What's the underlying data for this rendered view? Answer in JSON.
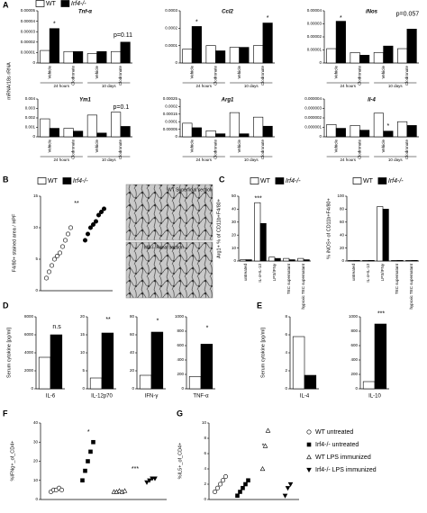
{
  "chart_data": [
    {
      "panel": "A",
      "type": "bar",
      "title": "Tnf-α",
      "y_label": "mRNA/18s rRNA",
      "legend": true,
      "categories": [
        "Vehicle",
        "Clodronate",
        "Vehicle",
        "Clodronate"
      ],
      "groups": [
        "24 hours",
        "10 days"
      ],
      "series": [
        {
          "name": "WT",
          "color": "#ffffff",
          "values": [
            1.2e-05,
            1.1e-05,
            9e-06,
            1.1e-05
          ]
        },
        {
          "name": "Irf4-/-",
          "color": "#000000",
          "values": [
            3.3e-05,
            1.1e-05,
            1.1e-05,
            2e-05
          ]
        }
      ],
      "ylim": [
        0,
        5e-05
      ],
      "yticks": [
        0,
        1e-05,
        2e-05,
        3e-05,
        4e-05,
        5e-05
      ],
      "annotations": [
        "*",
        "p=0.11"
      ]
    },
    {
      "type": "bar",
      "title": "Ccl2",
      "categories": [
        "Vehicle",
        "Clodronate",
        "Vehicle",
        "Clodronate"
      ],
      "groups": [
        "24 hours",
        "10 days"
      ],
      "series": [
        {
          "name": "WT",
          "color": "#ffffff",
          "values": [
            8e-05,
            0.0001,
            9e-05,
            0.0001
          ]
        },
        {
          "name": "Irf4-/-",
          "color": "#000000",
          "values": [
            0.00021,
            7e-05,
            9e-05,
            0.00023
          ]
        }
      ],
      "ylim": [
        0,
        0.0003
      ],
      "yticks": [
        0,
        0.0001,
        0.0002,
        0.0003
      ],
      "annotations": [
        "*",
        "*"
      ]
    },
    {
      "type": "bar",
      "title": "iNos",
      "categories": [
        "Vehicle",
        "Clodronate",
        "Vehicle",
        "Clodronate"
      ],
      "groups": [
        "24 hours",
        "10 days"
      ],
      "series": [
        {
          "name": "WT",
          "color": "#ffffff",
          "values": [
            1.1e-05,
            8e-06,
            8e-06,
            1.1e-05
          ]
        },
        {
          "name": "Irf4-/-",
          "color": "#000000",
          "values": [
            3.2e-05,
            6e-06,
            1.3e-05,
            2.6e-05
          ]
        }
      ],
      "ylim": [
        0,
        4e-05
      ],
      "yticks": [
        0,
        1e-05,
        2e-05,
        3e-05,
        4e-05
      ],
      "annotations": [
        "*",
        "p=0.057"
      ]
    },
    {
      "type": "bar",
      "title": "Ym1",
      "categories": [
        "Vehicle",
        "Clodronate",
        "Vehicle",
        "Clodronate"
      ],
      "groups": [
        "24 hours",
        "10 days"
      ],
      "series": [
        {
          "name": "WT",
          "color": "#ffffff",
          "values": [
            0.0019,
            0.0009,
            0.0023,
            0.0026
          ]
        },
        {
          "name": "Irf4-/-",
          "color": "#000000",
          "values": [
            0.0009,
            0.0006,
            0.0004,
            0.0011
          ]
        }
      ],
      "ylim": [
        0,
        0.004
      ],
      "yticks": [
        0,
        0.001,
        0.002,
        0.003,
        0.004
      ],
      "annotations": [
        "p=0.1"
      ]
    },
    {
      "type": "bar",
      "title": "Arg1",
      "categories": [
        "Vehicle",
        "Clodronate",
        "Vehicle",
        "Clodronate"
      ],
      "groups": [
        "24 hours",
        "10 days"
      ],
      "series": [
        {
          "name": "WT",
          "color": "#ffffff",
          "values": [
            9e-05,
            4e-05,
            0.00016,
            0.00013
          ]
        },
        {
          "name": "Irf4-/-",
          "color": "#000000",
          "values": [
            6e-05,
            2e-05,
            2e-05,
            7e-05
          ]
        }
      ],
      "ylim": [
        0,
        0.00025
      ],
      "yticks": [
        0,
        5e-05,
        0.0001,
        0.00015,
        0.0002,
        0.00025
      ]
    },
    {
      "type": "bar",
      "title": "Il-4",
      "categories": [
        "Vehicle",
        "Clodronate",
        "Vehicle",
        "Clodronate"
      ],
      "groups": [
        "24 hours",
        "10 days"
      ],
      "series": [
        {
          "name": "WT",
          "color": "#ffffff",
          "values": [
            1.3e-06,
            1.2e-06,
            2.5e-06,
            1.6e-06
          ]
        },
        {
          "name": "Irf4-/-",
          "color": "#000000",
          "values": [
            9e-07,
            7e-07,
            6e-07,
            1.2e-06
          ]
        }
      ],
      "ylim": [
        0,
        4e-06
      ],
      "yticks": [
        0,
        1e-06,
        2e-06,
        3e-06,
        4e-06
      ],
      "annotations": [
        "*"
      ]
    },
    {
      "panel": "B",
      "type": "dot",
      "y_label": "F4/80+ stained area / HPF",
      "legend": true,
      "image_labels": [
        "WT Superficial section",
        "Irf4-/- Renal section"
      ],
      "series": [
        {
          "name": "WT",
          "color": "#ffffff",
          "marker": "circle",
          "values": [
            2,
            3,
            4,
            5,
            5.5,
            6,
            7,
            8,
            9,
            10
          ]
        },
        {
          "name": "Irf4-/-",
          "color": "#000000",
          "marker": "circle",
          "values": [
            8,
            9,
            10,
            10.5,
            11,
            12,
            12.5,
            13
          ]
        }
      ],
      "ylim": [
        0,
        15
      ],
      "yticks": [
        0,
        5,
        10,
        15
      ],
      "annotations": [
        "**"
      ]
    },
    {
      "panel": "C",
      "type": "bar",
      "y_label": "Arg1+ % of CD11b+F4/80+",
      "legend": true,
      "categories": [
        "untreated",
        "IL-4+IL-13",
        "LPS/IFNγ",
        "TEC supernatant",
        "hypoxic TEC supernatant"
      ],
      "series": [
        {
          "name": "WT",
          "color": "#ffffff",
          "values": [
            1,
            45,
            3,
            2,
            2
          ]
        },
        {
          "name": "Irf4-/-",
          "color": "#000000",
          "values": [
            1,
            29,
            2,
            1,
            1
          ]
        }
      ],
      "ylim": [
        0,
        50
      ],
      "yticks": [
        0,
        10,
        20,
        30,
        40,
        50
      ],
      "annotations": [
        "***"
      ]
    },
    {
      "type": "bar",
      "y_label": "% iNOS+ of CD11b+F4/80+",
      "legend": true,
      "categories": [
        "untreated",
        "IL-4+IL-13",
        "LPS/IFNγ",
        "TEC supernatant",
        "hypoxic TEC supernatant"
      ],
      "series": [
        {
          "name": "WT",
          "color": "#ffffff",
          "values": [
            1,
            1,
            84,
            1,
            1
          ]
        },
        {
          "name": "Irf4-/-",
          "color": "#000000",
          "values": [
            1,
            1,
            80,
            1,
            1
          ]
        }
      ],
      "ylim": [
        0,
        100
      ],
      "yticks": [
        0,
        20,
        40,
        60,
        80,
        100
      ]
    },
    {
      "panel": "D",
      "type": "bar",
      "y_label": "Serum cytokine [pg/ml]",
      "categories": [
        "IL-6"
      ],
      "series": [
        {
          "name": "WT",
          "color": "#ffffff",
          "values": [
            3500
          ]
        },
        {
          "name": "Irf4-/-",
          "color": "#000000",
          "values": [
            6000
          ]
        }
      ],
      "ylim": [
        0,
        8000
      ],
      "yticks": [
        0,
        2000,
        4000,
        6000,
        8000
      ],
      "annotations": [
        "n.s"
      ]
    },
    {
      "type": "bar",
      "categories": [
        "IL-12p70"
      ],
      "series": [
        {
          "name": "WT",
          "color": "#ffffff",
          "values": [
            3
          ]
        },
        {
          "name": "Irf4-/-",
          "color": "#000000",
          "values": [
            15.5
          ]
        }
      ],
      "ylim": [
        0,
        20
      ],
      "yticks": [
        0,
        5,
        10,
        15,
        20
      ],
      "annotations": [
        "**"
      ]
    },
    {
      "type": "bar",
      "categories": [
        "IFN-γ"
      ],
      "series": [
        {
          "name": "WT",
          "color": "#ffffff",
          "values": [
            15
          ]
        },
        {
          "name": "Irf4-/-",
          "color": "#000000",
          "values": [
            63
          ]
        }
      ],
      "ylim": [
        0,
        80
      ],
      "yticks": [
        0,
        20,
        40,
        60,
        80
      ],
      "annotations": [
        "*"
      ]
    },
    {
      "type": "bar",
      "categories": [
        "TNF-α"
      ],
      "series": [
        {
          "name": "WT",
          "color": "#ffffff",
          "values": [
            170
          ]
        },
        {
          "name": "Irf4-/-",
          "color": "#000000",
          "values": [
            620
          ]
        }
      ],
      "ylim": [
        0,
        1000
      ],
      "yticks": [
        0,
        200,
        400,
        600,
        800,
        1000
      ],
      "annotations": [
        "*"
      ]
    },
    {
      "panel": "E",
      "type": "bar",
      "y_label": "Serum cytokine [pg/ml]",
      "categories": [
        "IL-4"
      ],
      "series": [
        {
          "name": "WT",
          "color": "#ffffff",
          "values": [
            5.8
          ]
        },
        {
          "name": "Irf4-/-",
          "color": "#000000",
          "values": [
            1.5
          ]
        }
      ],
      "ylim": [
        0,
        8
      ],
      "yticks": [
        0,
        2,
        4,
        6,
        8
      ]
    },
    {
      "type": "bar",
      "categories": [
        "IL-10"
      ],
      "series": [
        {
          "name": "WT",
          "color": "#ffffff",
          "values": [
            100
          ]
        },
        {
          "name": "Irf4-/-",
          "color": "#000000",
          "values": [
            900
          ]
        }
      ],
      "ylim": [
        0,
        1000
      ],
      "yticks": [
        0,
        200,
        400,
        600,
        800,
        1000
      ],
      "annotations": [
        "***"
      ]
    },
    {
      "panel": "F",
      "type": "dot",
      "y_label": "%IFNg+_of_CD4+",
      "legend": true,
      "series": [
        {
          "name": "WT untreated",
          "color": "#ffffff",
          "marker": "circle",
          "values": [
            4,
            5,
            5,
            6,
            5
          ]
        },
        {
          "name": "Irf4-/- untreated",
          "color": "#000000",
          "marker": "square",
          "values": [
            10,
            15,
            20,
            25,
            30
          ]
        },
        {
          "name": "WT LPS immunized",
          "color": "#ffffff",
          "marker": "triangle",
          "values": [
            4,
            4,
            4.5,
            4,
            4.5
          ]
        },
        {
          "name": "Irf4-/- LPS immunized",
          "color": "#000000",
          "marker": "triangle-down",
          "values": [
            9,
            10,
            11,
            11
          ]
        }
      ],
      "ylim": [
        0,
        40
      ],
      "yticks": [
        0,
        10,
        20,
        30,
        40
      ],
      "annotations": [
        "*",
        "***"
      ]
    },
    {
      "panel": "G",
      "type": "dot",
      "y_label": "%IL5+_of_CD4+",
      "series": [
        {
          "name": "WT untreated",
          "color": "#ffffff",
          "marker": "circle",
          "values": [
            1,
            1.5,
            2,
            2.5,
            3
          ]
        },
        {
          "name": "Irf4-/- untreated",
          "color": "#000000",
          "marker": "square",
          "values": [
            0.5,
            1,
            1.5,
            2,
            2.5
          ]
        },
        {
          "name": "WT LPS immunized",
          "color": "#ffffff",
          "marker": "triangle",
          "values": [
            4,
            7,
            9
          ]
        },
        {
          "name": "Irf4-/- LPS immunized",
          "color": "#000000",
          "marker": "triangle-down",
          "values": [
            0.5,
            1.5,
            2
          ]
        }
      ],
      "ylim": [
        0,
        10
      ],
      "yticks": [
        0,
        2,
        4,
        6,
        8,
        10
      ],
      "annotations": [
        "*"
      ]
    }
  ]
}
